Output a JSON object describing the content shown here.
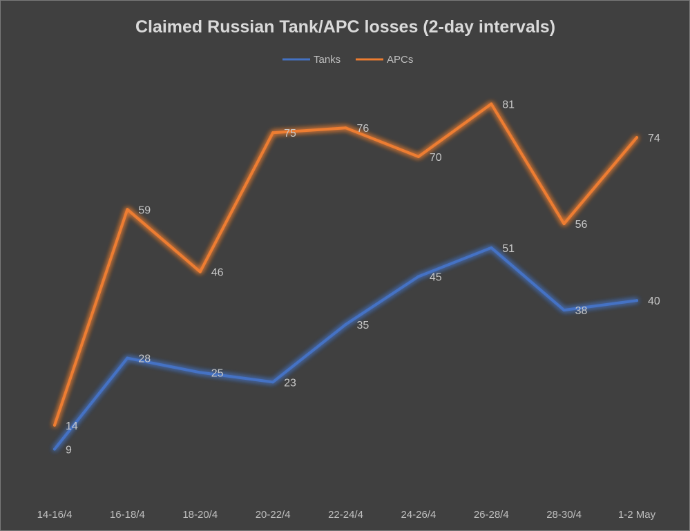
{
  "chart_data": {
    "type": "line",
    "title": "Claimed Russian Tank/APC losses (2-day intervals)",
    "categories": [
      "14-16/4",
      "16-18/4",
      "18-20/4",
      "20-22/4",
      "22-24/4",
      "24-26/4",
      "26-28/4",
      "28-30/4",
      "1-2 May"
    ],
    "series": [
      {
        "name": "Tanks",
        "color": "#4472c4",
        "values": [
          9,
          28,
          25,
          23,
          35,
          45,
          51,
          38,
          40
        ]
      },
      {
        "name": "APCs",
        "color": "#ed7d31",
        "values": [
          14,
          59,
          46,
          75,
          76,
          70,
          81,
          56,
          74
        ]
      }
    ],
    "ylim": [
      0,
      90
    ],
    "grid": false,
    "legend": "top-center",
    "data_labels": true
  }
}
